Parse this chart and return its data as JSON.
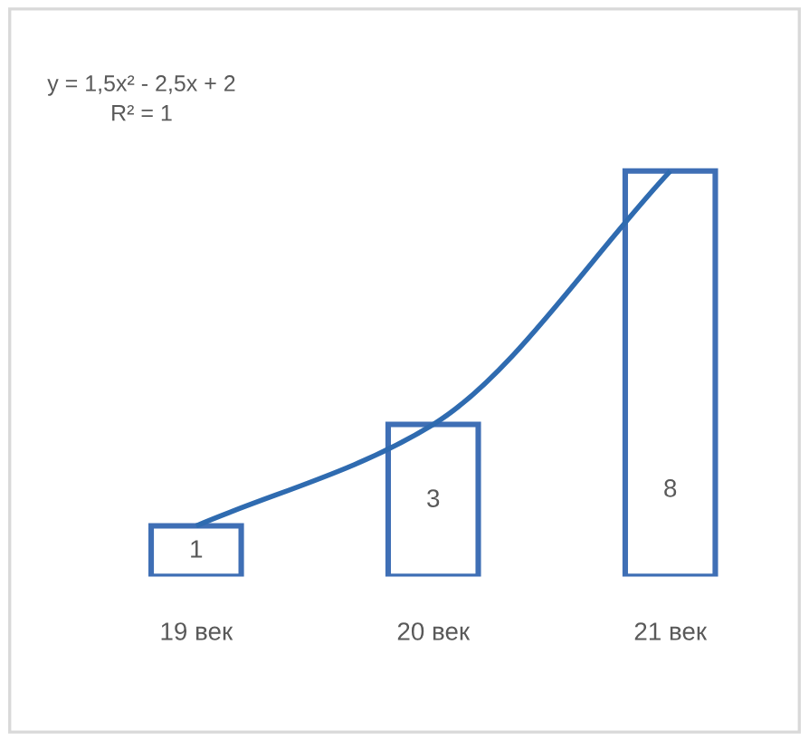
{
  "chart_data": {
    "type": "bar",
    "categories": [
      "19 век",
      "20 век",
      "21 век"
    ],
    "series": [
      {
        "color": "#3f6fb5",
        "values": [
          1,
          3,
          8
        ],
        "value_labels": [
          "1",
          "3",
          "8"
        ]
      },
      {
        "type": "line",
        "color": "#2f6bb0",
        "values": [
          1,
          3,
          8
        ]
      }
    ],
    "annotations": [
      "y = 1,5x² - 2,5x + 2",
      "R² = 1"
    ],
    "grid": false,
    "tick_labels": "x"
  }
}
